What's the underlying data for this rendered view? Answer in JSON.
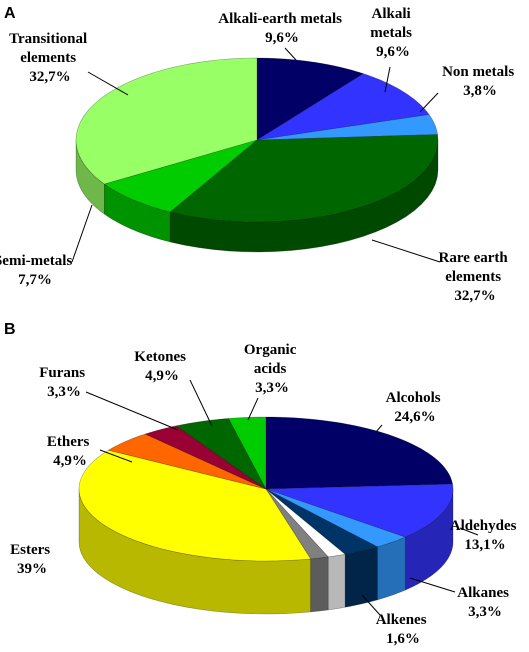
{
  "chart_data": [
    {
      "type": "pie",
      "panel": "A",
      "slices": [
        {
          "label": "Alkali-earth  metals",
          "value": 9.6,
          "value_label": "9,6%",
          "color": "#000066"
        },
        {
          "label": "Alkali metals",
          "value": 9.6,
          "value_label": "9,6%",
          "color": "#3333ff"
        },
        {
          "label": "Non metals",
          "value": 3.8,
          "value_label": "3,8%",
          "color": "#3399ff"
        },
        {
          "label": "Rare earth elements",
          "value": 32.7,
          "value_label": "32,7%",
          "color": "#006600"
        },
        {
          "label": "Semi-metals",
          "value": 7.7,
          "value_label": "7,7%",
          "color": "#00cc00"
        },
        {
          "label": "Transitional elements",
          "value": 32.7,
          "value_label": "32,7%",
          "color": "#99ff66"
        }
      ]
    },
    {
      "type": "pie",
      "panel": "B",
      "slices": [
        {
          "label": "Alcohols",
          "value": 24.6,
          "value_label": "24,6%",
          "color": "#000066"
        },
        {
          "label": "Aldehydes",
          "value": 13.1,
          "value_label": "13,1%",
          "color": "#3333ff"
        },
        {
          "label": "",
          "value": 3.3,
          "value_label": "",
          "color": "#3399ff"
        },
        {
          "label": "Alkanes",
          "value": 3.3,
          "value_label": "3,3%",
          "color": "#003366"
        },
        {
          "label": "",
          "value": 1.6,
          "value_label": "",
          "color": "#ffffff"
        },
        {
          "label": "Alkenes",
          "value": 1.6,
          "value_label": "1,6%",
          "color": "#808080"
        },
        {
          "label": "Esters",
          "value": 39,
          "value_label": "39%",
          "color": "#ffff00"
        },
        {
          "label": "Ethers",
          "value": 4.9,
          "value_label": "4,9%",
          "color": "#ff6600"
        },
        {
          "label": "Furans",
          "value": 3.3,
          "value_label": "3,3%",
          "color": "#990033"
        },
        {
          "label": "Ketones",
          "value": 4.9,
          "value_label": "4,9%",
          "color": "#006600"
        },
        {
          "label": "Organic acids",
          "value": 3.3,
          "value_label": "3,3%",
          "color": "#00cc00"
        }
      ]
    }
  ],
  "panels": {
    "a": "A",
    "b": "B"
  },
  "labels": {
    "a_alkaliearth": [
      "Alkali-earth  metals",
      "9,6%"
    ],
    "a_alkali": [
      "Alkali",
      "metals",
      "9,6%"
    ],
    "a_nonmetals": [
      "Non metals",
      "3,8%"
    ],
    "a_rareearth": [
      "Rare earth",
      "elements",
      "32,7%"
    ],
    "a_semimetals": [
      "Semi-metals",
      "7,7%"
    ],
    "a_transitional": [
      "Transitional",
      "elements",
      "32,7%"
    ],
    "b_alcohols": [
      "Alcohols",
      "24,6%"
    ],
    "b_aldehydes": [
      "Aldehydes",
      "13,1%"
    ],
    "b_alkanes": [
      "Alkanes",
      "3,3%"
    ],
    "b_alkenes": [
      "Alkenes",
      "1,6%"
    ],
    "b_esters": [
      "Esters",
      "39%"
    ],
    "b_ethers": [
      "Ethers",
      "4,9%"
    ],
    "b_furans": [
      "Furans",
      "3,3%"
    ],
    "b_ketones": [
      "Ketones",
      "4,9%"
    ],
    "b_organic": [
      "Organic",
      "acids",
      "3,3%"
    ]
  }
}
